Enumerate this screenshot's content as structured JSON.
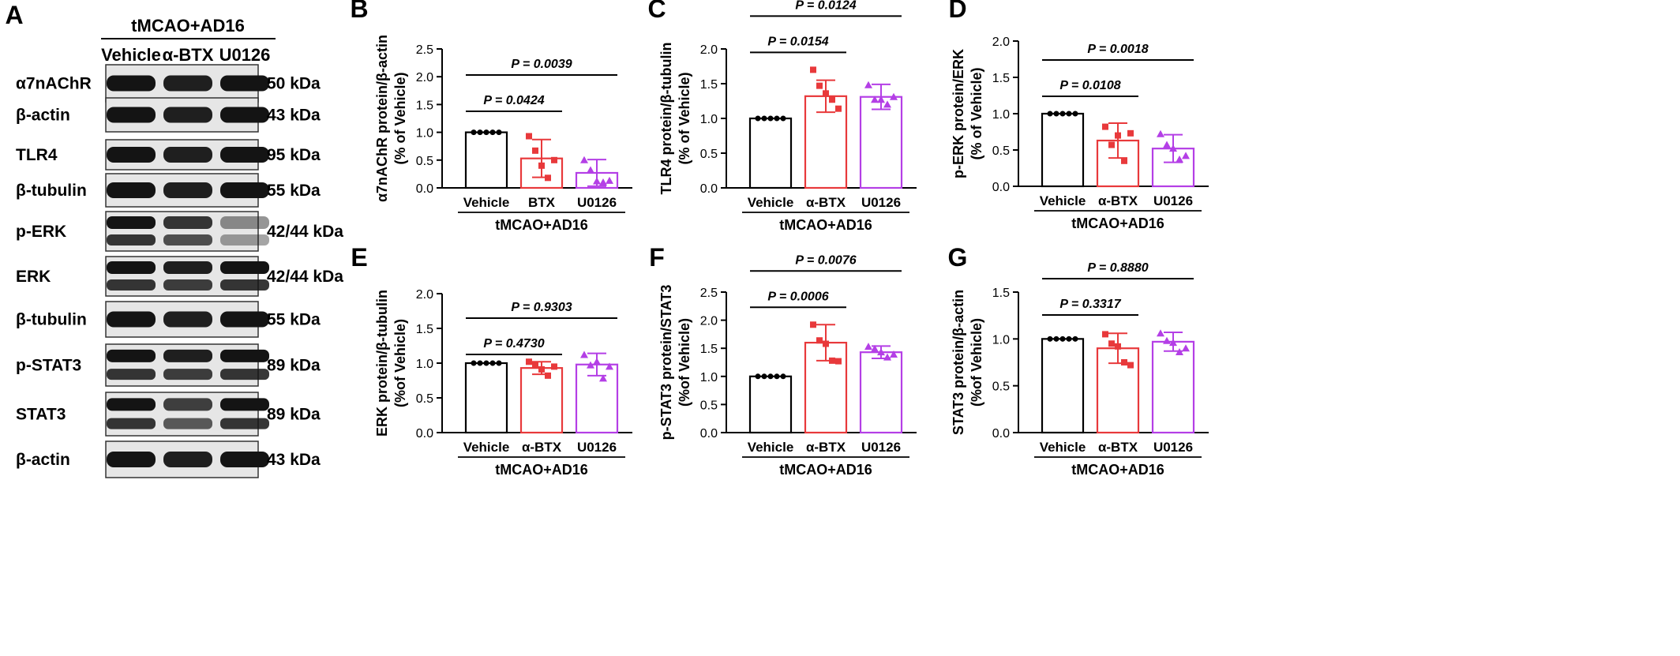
{
  "colors": {
    "vehicle": "#000000",
    "btx": "#e8393b",
    "u0126": "#b43fe6",
    "blot_bg": "#e6e6e6",
    "band": "#141414"
  },
  "blot": {
    "panel_letter": "A",
    "condition": "tMCAO+AD16",
    "lanes": [
      "Vehicle",
      "α-BTX",
      "U0126"
    ],
    "rows": [
      {
        "protein": "α7nAChR",
        "size": "50 kDa",
        "bands": 1
      },
      {
        "protein": "β-actin",
        "size": "43 kDa",
        "bands": 1
      },
      {
        "protein": "TLR4",
        "size": "95 kDa",
        "bands": 1
      },
      {
        "protein": "β-tubulin",
        "size": "55 kDa",
        "bands": 1
      },
      {
        "protein": "p-ERK",
        "size": "42/44 kDa",
        "bands": 2
      },
      {
        "protein": "ERK",
        "size": "42/44 kDa",
        "bands": 2
      },
      {
        "protein": "β-tubulin",
        "size": "55 kDa",
        "bands": 1
      },
      {
        "protein": "p-STAT3",
        "size": "89 kDa",
        "bands": 2
      },
      {
        "protein": "STAT3",
        "size": "89 kDa",
        "bands": 2
      },
      {
        "protein": "β-actin",
        "size": "43 kDa",
        "bands": 1
      }
    ]
  },
  "chart_data": [
    {
      "panel": "B",
      "type": "bar",
      "ylabel": "α7nAChR protein/β-actin",
      "ylabel2": "(% of Vehicle)",
      "group_label": "tMCAO+AD16",
      "categories": [
        "Vehicle",
        "BTX",
        "U0126"
      ],
      "ylim": [
        0,
        2.5
      ],
      "yticks": [
        "0.0",
        "0.5",
        "1.0",
        "1.5",
        "2.0",
        "2.5"
      ],
      "means": [
        1.0,
        0.53,
        0.27
      ],
      "sd": [
        0,
        0.34,
        0.24
      ],
      "points": [
        [
          1,
          1,
          1,
          1,
          1
        ],
        [
          0.93,
          0.67,
          0.4,
          0.18,
          0.5
        ],
        [
          0.5,
          0.32,
          0.12,
          0.1,
          0.13
        ]
      ],
      "comparisons": [
        {
          "label": "P = 0.0424",
          "from": 0,
          "to": 1
        },
        {
          "label": "P = 0.0039",
          "from": 0,
          "to": 2
        }
      ]
    },
    {
      "panel": "C",
      "type": "bar",
      "ylabel": "TLR4 protein/β-tubulin",
      "ylabel2": "(% of Vehicle)",
      "group_label": "tMCAO+AD16",
      "categories": [
        "Vehicle",
        "α-BTX",
        "U0126"
      ],
      "ylim": [
        0,
        2.0
      ],
      "yticks": [
        "0.0",
        "0.5",
        "1.0",
        "1.5",
        "2.0"
      ],
      "means": [
        1.0,
        1.32,
        1.31
      ],
      "sd": [
        0,
        0.23,
        0.18
      ],
      "points": [
        [
          1,
          1,
          1,
          1,
          1
        ],
        [
          1.7,
          1.47,
          1.36,
          1.27,
          1.14
        ],
        [
          1.48,
          1.27,
          1.27,
          1.2,
          1.31
        ]
      ],
      "comparisons": [
        {
          "label": "P = 0.0154",
          "from": 0,
          "to": 1
        },
        {
          "label": "P = 0.0124",
          "from": 0,
          "to": 2
        }
      ]
    },
    {
      "panel": "D",
      "type": "bar",
      "ylabel": "p-ERK protein/ERK",
      "ylabel2": "(% of Vehicle)",
      "group_label": "tMCAO+AD16",
      "categories": [
        "Vehicle",
        "α-BTX",
        "U0126"
      ],
      "ylim": [
        0,
        2.0
      ],
      "yticks": [
        "0.0",
        "0.5",
        "1.0",
        "1.5",
        "2.0"
      ],
      "means": [
        1.0,
        0.63,
        0.52
      ],
      "sd": [
        0,
        0.24,
        0.19
      ],
      "points": [
        [
          1,
          1,
          1,
          1,
          1
        ],
        [
          0.82,
          0.57,
          0.7,
          0.35,
          0.73
        ],
        [
          0.72,
          0.57,
          0.52,
          0.37,
          0.42
        ]
      ],
      "comparisons": [
        {
          "label": "P = 0.0108",
          "from": 0,
          "to": 1
        },
        {
          "label": "P = 0.0018",
          "from": 0,
          "to": 2
        }
      ]
    },
    {
      "panel": "E",
      "type": "bar",
      "ylabel": "ERK protein/β-tubulin",
      "ylabel2": "(%of Vehicle)",
      "group_label": "tMCAO+AD16",
      "categories": [
        "Vehicle",
        "α-BTX",
        "U0126"
      ],
      "ylim": [
        0,
        2.0
      ],
      "yticks": [
        "0.0",
        "0.5",
        "1.0",
        "1.5",
        "2.0"
      ],
      "means": [
        1.0,
        0.93,
        0.98
      ],
      "sd": [
        0,
        0.09,
        0.16
      ],
      "points": [
        [
          1,
          1,
          1,
          1,
          1
        ],
        [
          1.02,
          0.97,
          0.91,
          0.82,
          0.95
        ],
        [
          1.12,
          0.97,
          1.02,
          0.78,
          0.95
        ]
      ],
      "comparisons": [
        {
          "label": "P = 0.4730",
          "from": 0,
          "to": 1
        },
        {
          "label": "P = 0.9303",
          "from": 0,
          "to": 2
        }
      ]
    },
    {
      "panel": "F",
      "type": "bar",
      "ylabel": "p-STAT3 protein/STAT3",
      "ylabel2": "(%of Vehicle)",
      "group_label": "tMCAO+AD16",
      "categories": [
        "Vehicle",
        "α-BTX",
        "U0126"
      ],
      "ylim": [
        0,
        2.5
      ],
      "yticks": [
        "0.0",
        "0.5",
        "1.0",
        "1.5",
        "2.0",
        "2.5"
      ],
      "means": [
        1.0,
        1.6,
        1.43
      ],
      "sd": [
        0,
        0.32,
        0.11
      ],
      "points": [
        [
          1,
          1,
          1,
          1,
          1
        ],
        [
          1.92,
          1.64,
          1.58,
          1.28,
          1.27
        ],
        [
          1.53,
          1.49,
          1.43,
          1.34,
          1.39
        ]
      ],
      "comparisons": [
        {
          "label": "P = 0.0006",
          "from": 0,
          "to": 1
        },
        {
          "label": "P = 0.0076",
          "from": 0,
          "to": 2
        }
      ]
    },
    {
      "panel": "G",
      "type": "bar",
      "ylabel": "STAT3 protein/β-actin",
      "ylabel2": "(%of Vehicle)",
      "group_label": "tMCAO+AD16",
      "categories": [
        "Vehicle",
        "α-BTX",
        "U0126"
      ],
      "ylim": [
        0,
        1.5
      ],
      "yticks": [
        "0.0",
        "0.5",
        "1.0",
        "1.5"
      ],
      "means": [
        1.0,
        0.9,
        0.97
      ],
      "sd": [
        0,
        0.16,
        0.1
      ],
      "points": [
        [
          1,
          1,
          1,
          1,
          1
        ],
        [
          1.05,
          0.95,
          0.92,
          0.75,
          0.72
        ],
        [
          1.06,
          0.98,
          0.96,
          0.86,
          0.9
        ]
      ],
      "comparisons": [
        {
          "label": "P = 0.3317",
          "from": 0,
          "to": 1
        },
        {
          "label": "P = 0.8880",
          "from": 0,
          "to": 2
        }
      ]
    }
  ]
}
